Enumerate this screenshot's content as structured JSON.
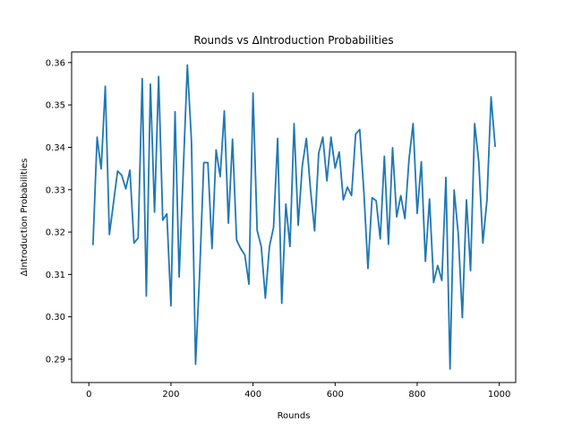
{
  "chart_data": {
    "type": "line",
    "title": "Rounds vs ΔIntroduction Probabilities",
    "xlabel": "Rounds",
    "ylabel": "ΔIntroduction Probabilities",
    "xlim": [
      -42,
      1040
    ],
    "ylim": [
      0.2845,
      0.3625
    ],
    "xticks": [
      0,
      200,
      400,
      600,
      800,
      1000
    ],
    "xtick_labels": [
      "0",
      "200",
      "400",
      "600",
      "800",
      "1000"
    ],
    "yticks": [
      0.29,
      0.3,
      0.31,
      0.32,
      0.33,
      0.34,
      0.35,
      0.36
    ],
    "ytick_labels": [
      "0.29",
      "0.30",
      "0.31",
      "0.32",
      "0.33",
      "0.34",
      "0.35",
      "0.36"
    ],
    "grid": false,
    "series": [
      {
        "name": "",
        "color": "#1f77b4",
        "x": [
          10,
          20,
          30,
          40,
          50,
          60,
          70,
          80,
          90,
          100,
          110,
          120,
          130,
          140,
          150,
          160,
          170,
          180,
          190,
          200,
          210,
          220,
          230,
          240,
          250,
          260,
          270,
          280,
          290,
          300,
          310,
          320,
          330,
          340,
          350,
          360,
          370,
          380,
          390,
          400,
          410,
          420,
          430,
          440,
          450,
          460,
          470,
          480,
          490,
          500,
          510,
          520,
          530,
          540,
          550,
          560,
          570,
          580,
          590,
          600,
          610,
          620,
          630,
          640,
          650,
          660,
          670,
          680,
          690,
          700,
          710,
          720,
          730,
          740,
          750,
          760,
          770,
          780,
          790,
          800,
          810,
          820,
          830,
          840,
          850,
          860,
          870,
          880,
          890,
          900,
          910,
          920,
          930,
          940,
          950,
          960,
          970,
          980,
          990
        ],
        "y": [
          0.3169,
          0.3424,
          0.3349,
          0.3544,
          0.3194,
          0.3269,
          0.3344,
          0.3334,
          0.3302,
          0.3346,
          0.3174,
          0.3186,
          0.3562,
          0.3049,
          0.3549,
          0.3247,
          0.3567,
          0.3228,
          0.3243,
          0.3026,
          0.3484,
          0.3094,
          0.3344,
          0.3594,
          0.3414,
          0.2888,
          0.3104,
          0.3364,
          0.3364,
          0.3161,
          0.3394,
          0.3331,
          0.3486,
          0.3221,
          0.3419,
          0.3181,
          0.3161,
          0.3146,
          0.3077,
          0.3528,
          0.3204,
          0.3166,
          0.3044,
          0.3166,
          0.3211,
          0.3421,
          0.3032,
          0.3266,
          0.3166,
          0.3456,
          0.3216,
          0.3356,
          0.3421,
          0.3301,
          0.3203,
          0.3386,
          0.3424,
          0.3321,
          0.3424,
          0.3351,
          0.3389,
          0.3276,
          0.3306,
          0.3286,
          0.3431,
          0.3442,
          0.3296,
          0.3114,
          0.3281,
          0.3274,
          0.3184,
          0.3379,
          0.3171,
          0.3399,
          0.3236,
          0.3286,
          0.3232,
          0.3371,
          0.3456,
          0.3244,
          0.3366,
          0.3131,
          0.3278,
          0.3081,
          0.3121,
          0.3086,
          0.3329,
          0.2877,
          0.3299,
          0.3196,
          0.2998,
          0.3276,
          0.3109,
          0.3456,
          0.3366,
          0.3174,
          0.3276,
          0.3519,
          0.3401
        ]
      }
    ]
  }
}
